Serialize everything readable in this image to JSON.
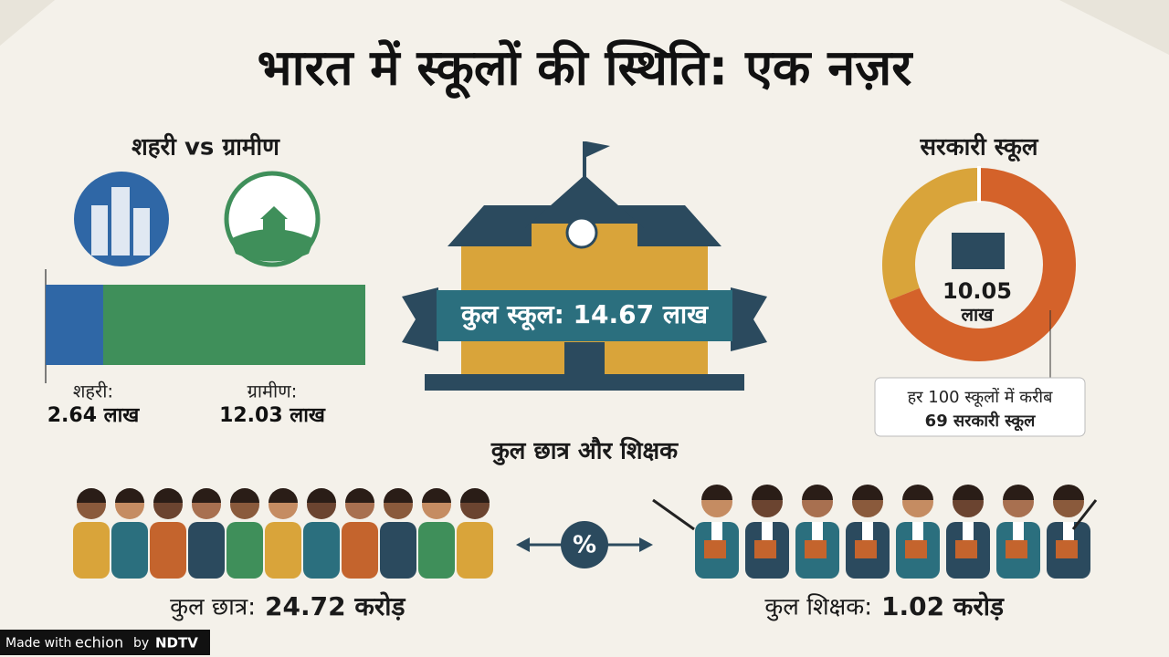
{
  "title": "भारत में स्कूलों की स्थिति: एक नज़र",
  "urban_rural": {
    "heading": "शहरी vs ग्रामीण",
    "segments": [
      {
        "label": "शहरी:",
        "value": 2.64,
        "value_label": "2.64 लाख",
        "color": "#2f67a6"
      },
      {
        "label": "ग्रामीण:",
        "value": 12.03,
        "value_label": "12.03 लाख",
        "color": "#3f8f5a"
      }
    ]
  },
  "total_schools": "कुल स्कूल: 14.67 लाख",
  "government": {
    "heading": "सरकारी स्कूल",
    "count": "10.05",
    "unit": "लाख",
    "share": {
      "value": 69,
      "total": 100,
      "color": "#d4622a",
      "rest_color": "#d9a43a"
    },
    "note": [
      "हर 100 स्कूलों में करीब",
      "69 सरकारी स्कूल"
    ]
  },
  "people": {
    "heading": "कुल छात्र और शिक्षक",
    "students": {
      "label": "कुल छात्र:",
      "value": "24.72 करोड़"
    },
    "teachers": {
      "label": "कुल शिक्षक:",
      "value": "1.02 करोड़"
    },
    "symbol": "%"
  },
  "footer": {
    "prefix": "Made with",
    "brand": "echion",
    "by": "by",
    "partner": "NDTV"
  }
}
